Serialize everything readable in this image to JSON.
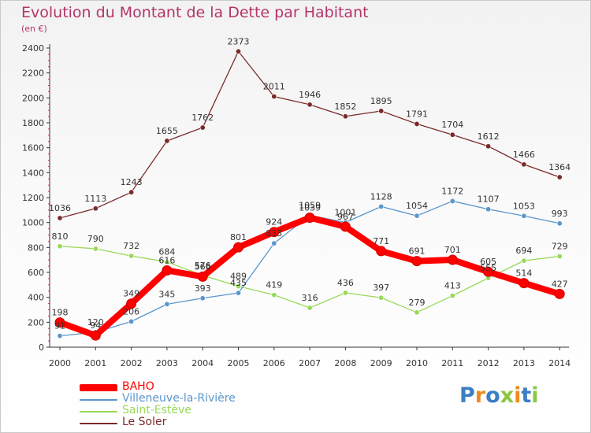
{
  "chart_data": {
    "type": "line",
    "title": "Evolution du Montant de la Dette par Habitant",
    "subtitle": "(en €)",
    "xlabel": "",
    "ylabel": "",
    "ylim": [
      0,
      2400
    ],
    "yticks": [
      0,
      200,
      400,
      600,
      800,
      1000,
      1200,
      1400,
      1600,
      1800,
      2000,
      2200,
      2400
    ],
    "x": [
      "2000",
      "2001",
      "2002",
      "2003",
      "2004",
      "2005",
      "2006",
      "2007",
      "2008",
      "2009",
      "2010",
      "2011",
      "2012",
      "2013",
      "2014"
    ],
    "grid": false,
    "legend_position": "bottom-left",
    "series": [
      {
        "name": "Le Soler",
        "color": "#7a2a2a",
        "values": [
          1036,
          1113,
          1243,
          1655,
          1762,
          2373,
          2011,
          1946,
          1852,
          1895,
          1791,
          1704,
          1612,
          1466,
          1364
        ]
      },
      {
        "name": "Saint-Estève",
        "color": "#99d95a",
        "values": [
          810,
          790,
          732,
          684,
          576,
          489,
          419,
          316,
          436,
          397,
          279,
          413,
          555,
          694,
          729
        ]
      },
      {
        "name": "Villeneuve-la-Rivière",
        "color": "#5a96cc",
        "values": [
          91,
          120,
          206,
          345,
          393,
          435,
          833,
          1059,
          1001,
          1128,
          1054,
          1172,
          1107,
          1053,
          993
        ]
      },
      {
        "name": "BAHO",
        "color": "#ff0000",
        "values": [
          198,
          94,
          349,
          616,
          566,
          801,
          924,
          1039,
          967,
          771,
          691,
          701,
          605,
          514,
          427
        ]
      }
    ],
    "data_labels": {
      "Le Soler": [
        "1036",
        "1113",
        "1243",
        "1655",
        "1762",
        "2373",
        "2011",
        "1946",
        "1852",
        "1895",
        "1791",
        "1704",
        "1612",
        "1466",
        "1364"
      ],
      "Saint-Estève": [
        "810",
        "790",
        "732",
        "684",
        "576",
        "489",
        "419",
        "316",
        "436",
        "397",
        "279",
        "413",
        "555",
        "694",
        "729"
      ],
      "Villeneuve-la-Rivière": [
        "91",
        "120",
        "206",
        "345",
        "393",
        "435",
        "833",
        "1059",
        "1001",
        "1128",
        "1054",
        "1172",
        "1107",
        "1053",
        "993"
      ],
      "BAHO": [
        "198",
        "94",
        "349",
        "616",
        "566",
        "801",
        "924",
        "1039",
        "967",
        "771",
        "691",
        "701",
        "605",
        "514",
        "427"
      ]
    }
  },
  "legend": [
    {
      "name": "BAHO",
      "color": "#ff0000"
    },
    {
      "name": "Villeneuve-la-Rivière",
      "color": "#5a96cc"
    },
    {
      "name": "Saint-Estève",
      "color": "#99d95a"
    },
    {
      "name": "Le Soler",
      "color": "#7a2a2a"
    }
  ],
  "logo": {
    "text": "Proxiti",
    "colors": [
      "#3b7fc4",
      "#f08a1e",
      "#3b7fc4",
      "#8cc63f",
      "#f08a1e",
      "#3b7fc4",
      "#8cc63f"
    ]
  }
}
